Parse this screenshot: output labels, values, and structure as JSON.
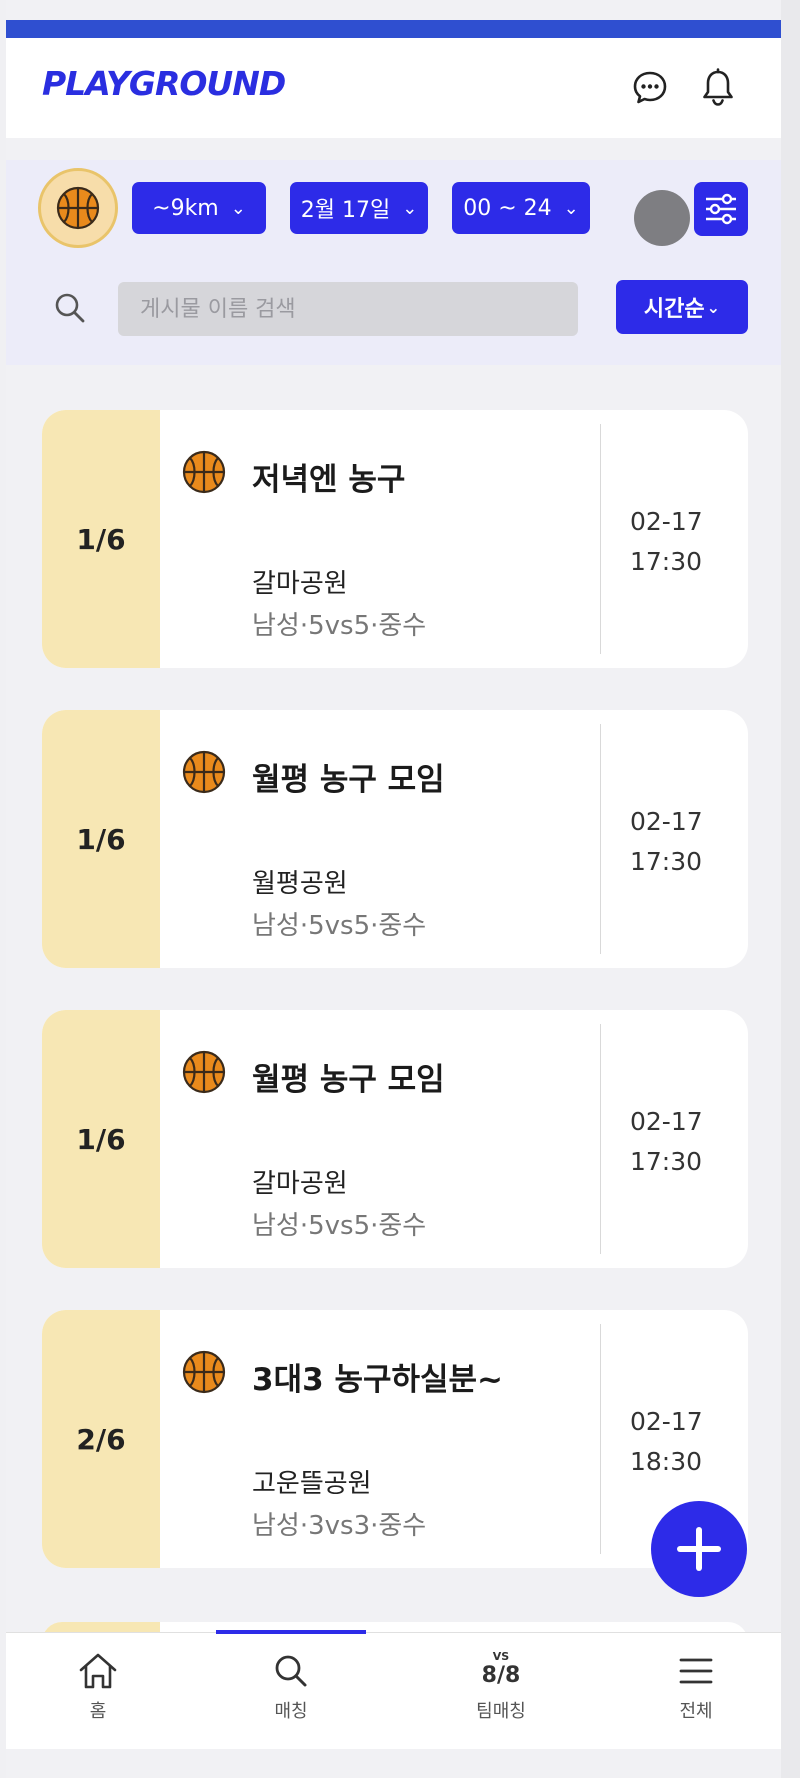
{
  "app": {
    "logo": "PLAYGROUND"
  },
  "header": {
    "chat_icon": "chat-bubble-icon",
    "bell_icon": "bell-icon"
  },
  "filters": {
    "sport_icon": "basketball-icon",
    "distance": "~9km",
    "date": "2월 17일",
    "time": "00 ~ 24",
    "settings_icon": "sliders-icon"
  },
  "search": {
    "placeholder": "게시물 이름 검색",
    "sort_label": "시간순"
  },
  "posts": [
    {
      "count": "1/6",
      "title": "저녁엔 농구",
      "place": "갈마공원",
      "meta": "남성·5vs5·중수",
      "date": "02-17",
      "time": "17:30"
    },
    {
      "count": "1/6",
      "title": "월평 농구 모임",
      "place": "월평공원",
      "meta": "남성·5vs5·중수",
      "date": "02-17",
      "time": "17:30"
    },
    {
      "count": "1/6",
      "title": "월평 농구 모임",
      "place": "갈마공원",
      "meta": "남성·5vs5·중수",
      "date": "02-17",
      "time": "17:30"
    },
    {
      "count": "2/6",
      "title": "3대3 농구하실분~",
      "place": "고운뜰공원",
      "meta": "남성·3vs3·중수",
      "date": "02-17",
      "time": "18:30"
    }
  ],
  "nav": [
    {
      "label": "홈",
      "icon": "home-icon"
    },
    {
      "label": "매칭",
      "icon": "search-icon"
    },
    {
      "label": "팀매칭",
      "icon": "team-match-icon",
      "badge": "VS",
      "glyph": "8/8"
    },
    {
      "label": "전체",
      "icon": "menu-icon"
    }
  ],
  "colors": {
    "primary": "#2d2be8",
    "count_bg": "#f7e7b4",
    "accent_bar": "#2f4fd0"
  }
}
